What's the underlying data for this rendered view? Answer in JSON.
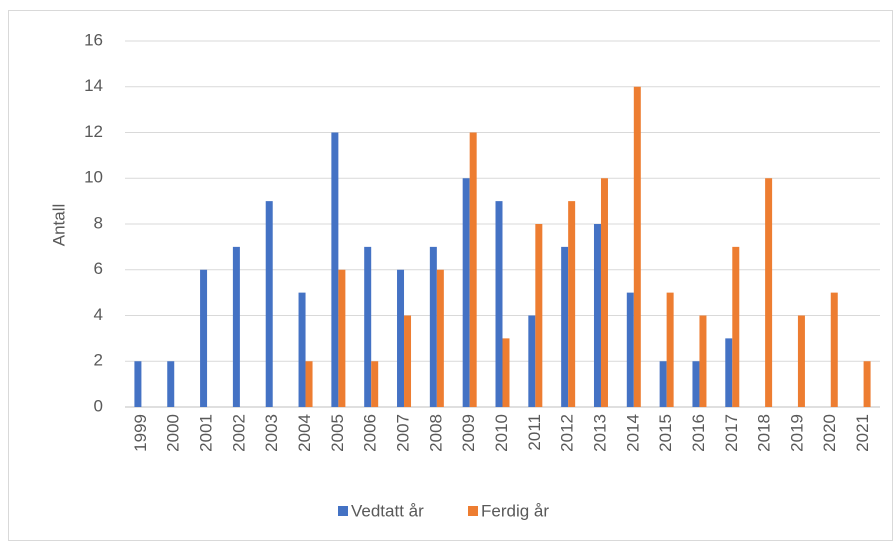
{
  "chart_data": {
    "type": "bar",
    "y_label": "Antall",
    "categories": [
      "1999",
      "2000",
      "2001",
      "2002",
      "2003",
      "2004",
      "2005",
      "2006",
      "2007",
      "2008",
      "2009",
      "2010",
      "2011",
      "2012",
      "2013",
      "2014",
      "2015",
      "2016",
      "2017",
      "2018",
      "2019",
      "2020",
      "2021"
    ],
    "series": [
      {
        "name": "Vedtatt år",
        "color": "#4472c4",
        "values": [
          2,
          2,
          6,
          7,
          9,
          5,
          12,
          7,
          6,
          7,
          10,
          9,
          4,
          7,
          8,
          5,
          2,
          2,
          3,
          null,
          null,
          null,
          null
        ]
      },
      {
        "name": "Ferdig år",
        "color": "#ed7d31",
        "values": [
          null,
          null,
          null,
          null,
          null,
          2,
          6,
          2,
          4,
          6,
          12,
          3,
          8,
          9,
          10,
          14,
          5,
          4,
          7,
          10,
          4,
          5,
          2
        ]
      }
    ],
    "ylim": [
      0,
      16
    ],
    "yticks": [
      0,
      2,
      4,
      6,
      8,
      10,
      12,
      14,
      16
    ],
    "grid": true,
    "legend": "bottom"
  }
}
